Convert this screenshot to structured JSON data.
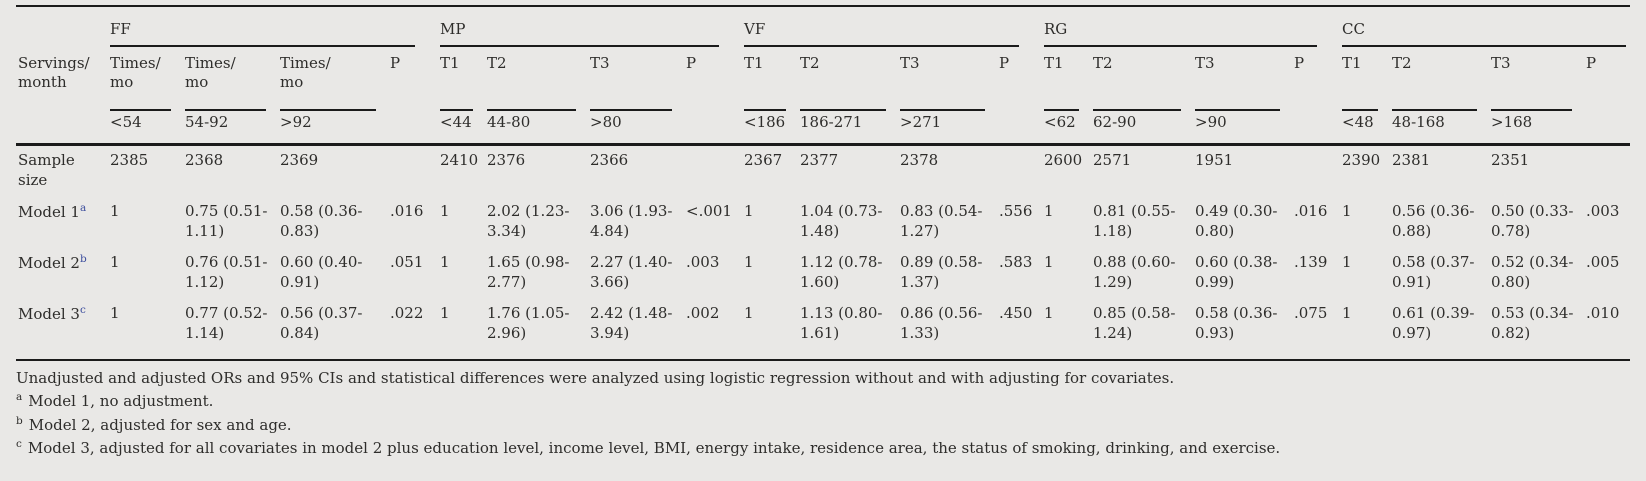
{
  "table": {
    "row_header_title": "Servings/\nmonth",
    "groups": [
      {
        "label": "FF",
        "cols": [
          "Times/\nmo",
          "Times/\nmo",
          "Times/\nmo",
          "P"
        ],
        "ranges": [
          "<54",
          "54-92",
          ">92"
        ]
      },
      {
        "label": "MP",
        "cols": [
          "T1",
          "T2",
          "T3",
          "P"
        ],
        "ranges": [
          "<44",
          "44-80",
          ">80"
        ]
      },
      {
        "label": "VF",
        "cols": [
          "T1",
          "T2",
          "T3",
          "P"
        ],
        "ranges": [
          "<186",
          "186-271",
          ">271"
        ]
      },
      {
        "label": "RG",
        "cols": [
          "T1",
          "T2",
          "T3",
          "P"
        ],
        "ranges": [
          "<62",
          "62-90",
          ">90"
        ]
      },
      {
        "label": "CC",
        "cols": [
          "T1",
          "T2",
          "T3",
          "P"
        ],
        "ranges": [
          "<48",
          "48-168",
          ">168"
        ]
      }
    ],
    "rows": [
      {
        "label": "Sample\nsize",
        "sup": "",
        "cells": [
          "2385",
          "2368",
          "2369",
          "",
          "2410",
          "2376",
          "2366",
          "",
          "2367",
          "2377",
          "2378",
          "",
          "2600",
          "2571",
          "1951",
          "",
          "2390",
          "2381",
          "2351",
          ""
        ]
      },
      {
        "label": "Model 1",
        "sup": "a",
        "cells": [
          "1",
          "0.75 (0.51-1.11)",
          "0.58 (0.36-0.83)",
          ".016",
          "1",
          "2.02 (1.23-3.34)",
          "3.06 (1.93-4.84)",
          "<.001",
          "1",
          "1.04 (0.73-1.48)",
          "0.83 (0.54-1.27)",
          ".556",
          "1",
          "0.81 (0.55-1.18)",
          "0.49 (0.30-0.80)",
          ".016",
          "1",
          "0.56 (0.36-0.88)",
          "0.50 (0.33-0.78)",
          ".003"
        ]
      },
      {
        "label": "Model 2",
        "sup": "b",
        "cells": [
          "1",
          "0.76 (0.51-1.12)",
          "0.60 (0.40-0.91)",
          ".051",
          "1",
          "1.65 (0.98-2.77)",
          "2.27 (1.40-3.66)",
          ".003",
          "1",
          "1.12 (0.78-1.60)",
          "0.89 (0.58-1.37)",
          ".583",
          "1",
          "0.88 (0.60-1.29)",
          "0.60 (0.38-0.99)",
          ".139",
          "1",
          "0.58 (0.37-0.91)",
          "0.52 (0.34-0.80)",
          ".005"
        ]
      },
      {
        "label": "Model 3",
        "sup": "c",
        "cells": [
          "1",
          "0.77 (0.52-1.14)",
          "0.56 (0.37-0.84)",
          ".022",
          "1",
          "1.76 (1.05-2.96)",
          "2.42 (1.48-3.94)",
          ".002",
          "1",
          "1.13 (0.80-1.61)",
          "0.86 (0.56-1.33)",
          ".450",
          "1",
          "0.85 (0.58-1.24)",
          "0.58 (0.36-0.93)",
          ".075",
          "1",
          "0.61 (0.39-0.97)",
          "0.53 (0.34-0.82)",
          ".010"
        ]
      }
    ],
    "footnotes": {
      "general": "Unadjusted and adjusted ORs and 95% CIs and statistical differences were analyzed using logistic regression without and with adjusting for covariates.",
      "items": [
        {
          "marker": "a",
          "text": "Model 1, no adjustment."
        },
        {
          "marker": "b",
          "text": "Model 2, adjusted for sex and age."
        },
        {
          "marker": "c",
          "text": "Model 3, adjusted for all covariates in model 2 plus education level, income level, BMI, energy intake, residence area, the status of smoking, drinking, and exercise."
        }
      ]
    }
  },
  "colors": {
    "background": "#e9e8e6",
    "text": "#2e2d2b",
    "rule": "#1b1b1b",
    "superscript_accent": "#3d4e9d"
  }
}
